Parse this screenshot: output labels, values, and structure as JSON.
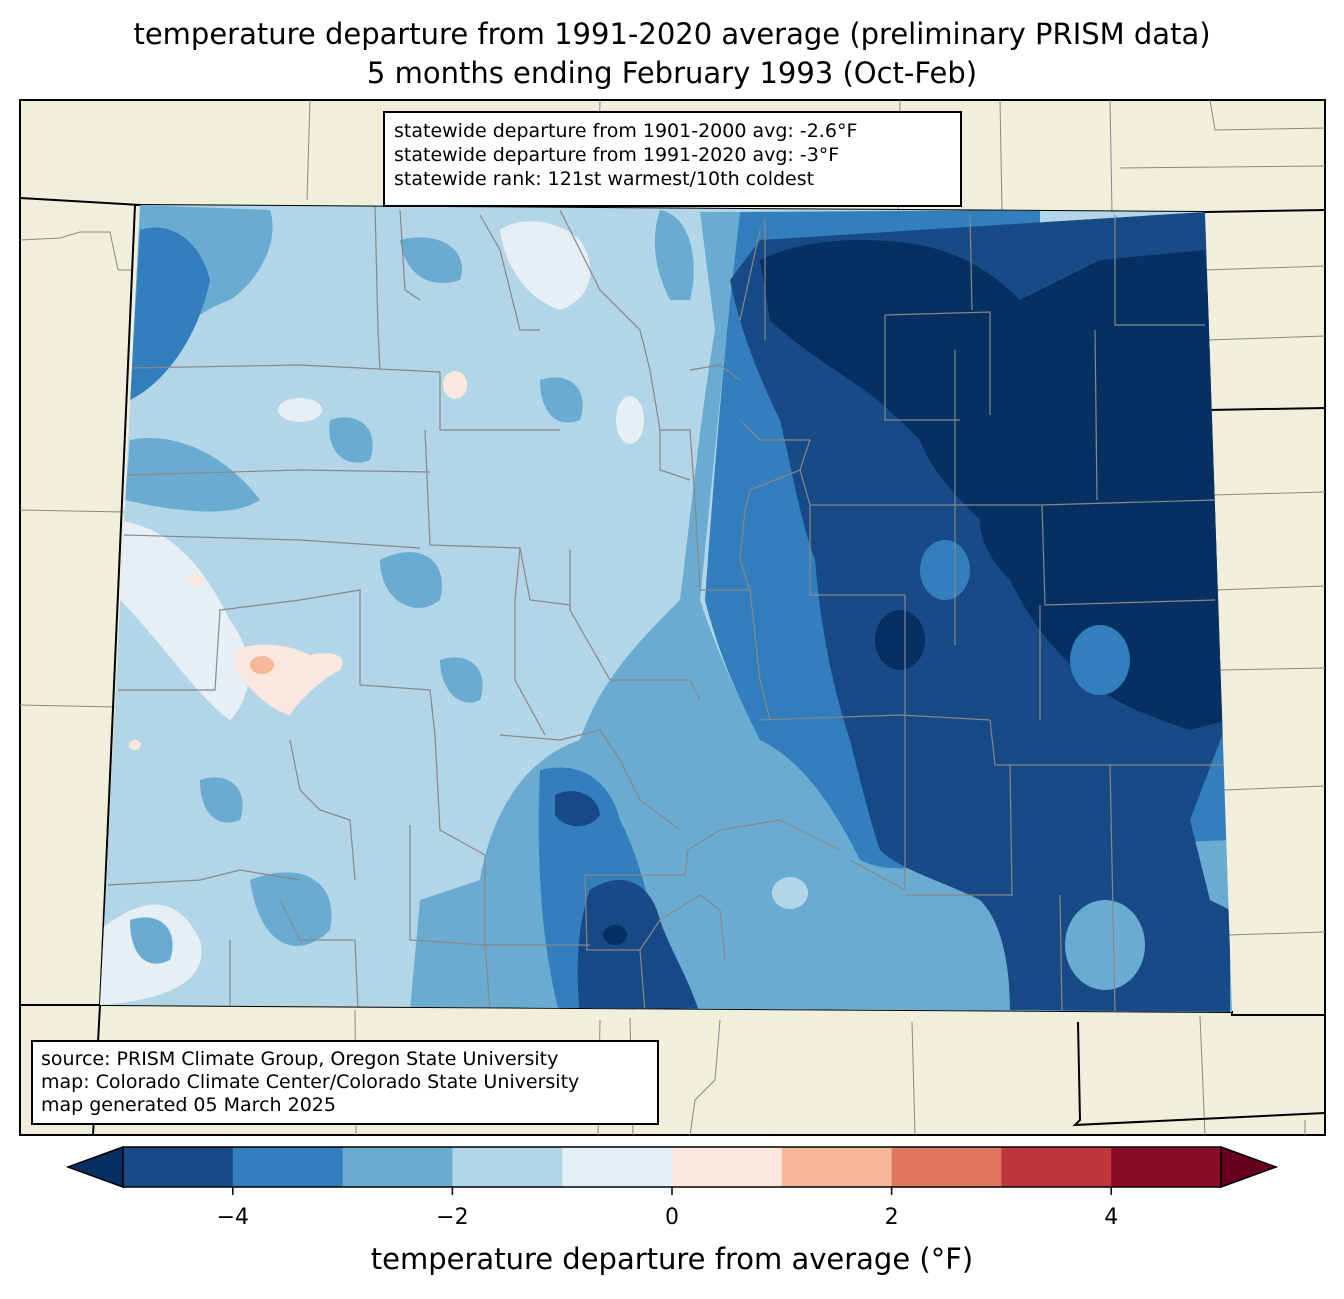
{
  "title_line1": "temperature departure from 1991-2020 average (preliminary PRISM data)",
  "title_line2": "5 months ending February 1993 (Oct-Feb)",
  "stats": {
    "line1": "statewide departure from 1901-2000 avg: -2.6°F",
    "line2": "statewide departure from 1991-2020 avg: -3°F",
    "line3": "statewide rank: 121st warmest/10th coldest"
  },
  "source": {
    "line1": "source: PRISM Climate Group, Oregon State University",
    "line2": "map: Colorado Climate Center/Colorado State University",
    "line3": "map generated 05 March 2025"
  },
  "colorbar": {
    "label": "temperature departure from average (°F)",
    "min": -5,
    "max": 5,
    "tick_labels": [
      "−4",
      "−2",
      "0",
      "2",
      "4"
    ],
    "tick_values": [
      -4,
      -2,
      0,
      2,
      4
    ],
    "colors": {
      "under": "#053061",
      "bins": [
        "#174a87",
        "#337ebc",
        "#6aabd2",
        "#b2d5e7",
        "#e5eff5",
        "#fae8de",
        "#f7b89a",
        "#e0775f",
        "#bf363c",
        "#890d28"
      ],
      "over": "#67001f"
    }
  },
  "land_color": "#efefdb"
}
